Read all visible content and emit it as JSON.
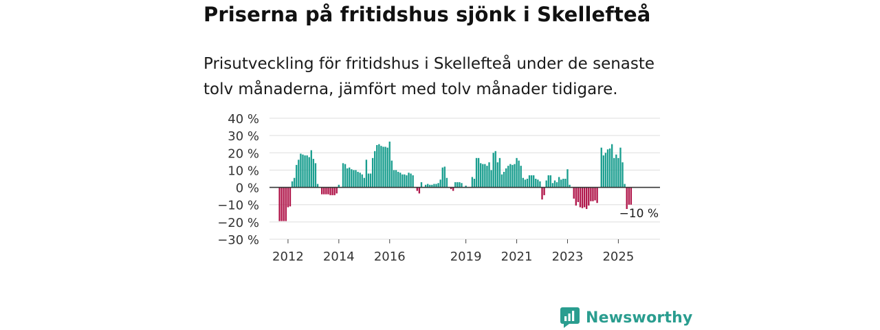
{
  "header": {
    "title": "Priserna på fritidshus sjönk i Skellefteå",
    "subtitle": "Prisutveckling för fritidshus i Skellefteå under de senaste tolv månaderna, jämfört med tolv månader tidigare."
  },
  "brand": {
    "name": "Newsworthy",
    "icon": "newsworthy-logo-icon"
  },
  "colors": {
    "positive": "#1a9e8f",
    "negative": "#b0164a",
    "grid": "#dddddd",
    "zero_line": "#333333"
  },
  "chart_data": {
    "type": "bar",
    "title": "Priserna på fritidshus sjönk i Skellefteå",
    "ylabel": "",
    "xlabel": "",
    "ylim": [
      -30,
      40
    ],
    "yticks": [
      40,
      30,
      20,
      10,
      0,
      -10,
      -20,
      -30
    ],
    "ytick_labels": [
      "40 %",
      "30 %",
      "20 %",
      "10 %",
      "0 %",
      "−10 %",
      "−20 %",
      "−30 %"
    ],
    "x_start": "2011-09",
    "frequency": "monthly",
    "xticks": [
      {
        "label": "2012",
        "index": 4
      },
      {
        "label": "2014",
        "index": 28
      },
      {
        "label": "2016",
        "index": 52
      },
      {
        "label": "2019",
        "index": 88
      },
      {
        "label": "2021",
        "index": 112
      },
      {
        "label": "2023",
        "index": 136
      },
      {
        "label": "2025",
        "index": 160
      }
    ],
    "values": [
      -19.5,
      -19.5,
      -19.5,
      -19.5,
      -11.5,
      -11.0,
      3.5,
      5.5,
      13.0,
      16.0,
      19.5,
      19.0,
      18.5,
      18.5,
      17.5,
      21.5,
      16.5,
      14.0,
      2.0,
      0,
      -4.0,
      -4.0,
      -4.0,
      -4.0,
      -4.5,
      -4.5,
      -4.5,
      -3.5,
      1.5,
      0,
      14.0,
      13.5,
      11.0,
      11.5,
      10.5,
      10.0,
      10.0,
      9.0,
      8.5,
      7.5,
      5.5,
      16.0,
      8.0,
      8.0,
      17.0,
      21.0,
      24.5,
      25.0,
      24.0,
      23.5,
      23.5,
      23.0,
      26.5,
      15.5,
      10.0,
      10.0,
      9.0,
      8.5,
      7.5,
      7.5,
      7.0,
      8.5,
      8.0,
      7.0,
      0,
      -2.0,
      -3.5,
      3.0,
      0,
      1.5,
      2.0,
      1.5,
      1.5,
      2.0,
      2.0,
      2.5,
      4.5,
      11.5,
      12.0,
      5.5,
      0,
      -1.0,
      -2.0,
      3.0,
      3.0,
      3.0,
      2.5,
      0,
      1.0,
      0,
      0,
      6.0,
      5.0,
      17.0,
      17.0,
      14.0,
      13.5,
      13.5,
      12.5,
      14.5,
      10.0,
      20.0,
      21.0,
      14.5,
      17.0,
      7.5,
      9.0,
      11.0,
      12.5,
      13.5,
      13.0,
      13.5,
      17.0,
      15.5,
      12.5,
      5.5,
      4.5,
      5.0,
      7.0,
      7.0,
      7.0,
      5.0,
      4.5,
      3.5,
      -7.0,
      -4.5,
      4.0,
      7.0,
      7.0,
      2.5,
      4.0,
      3.0,
      6.0,
      4.5,
      5.0,
      5.0,
      10.5,
      1.5,
      0,
      -6.5,
      -10.5,
      -8.5,
      -11.5,
      -12.0,
      -11.5,
      -12.5,
      -10.5,
      -8.0,
      -8.0,
      -7.5,
      -9.0,
      0,
      23.0,
      18.5,
      20.0,
      22.0,
      22.5,
      25.0,
      17.0,
      19.0,
      17.0,
      23.0,
      14.5,
      2.0,
      -12.5,
      -10.0,
      -10.0
    ],
    "annotation": {
      "text": "−10 %",
      "index": 178
    }
  }
}
